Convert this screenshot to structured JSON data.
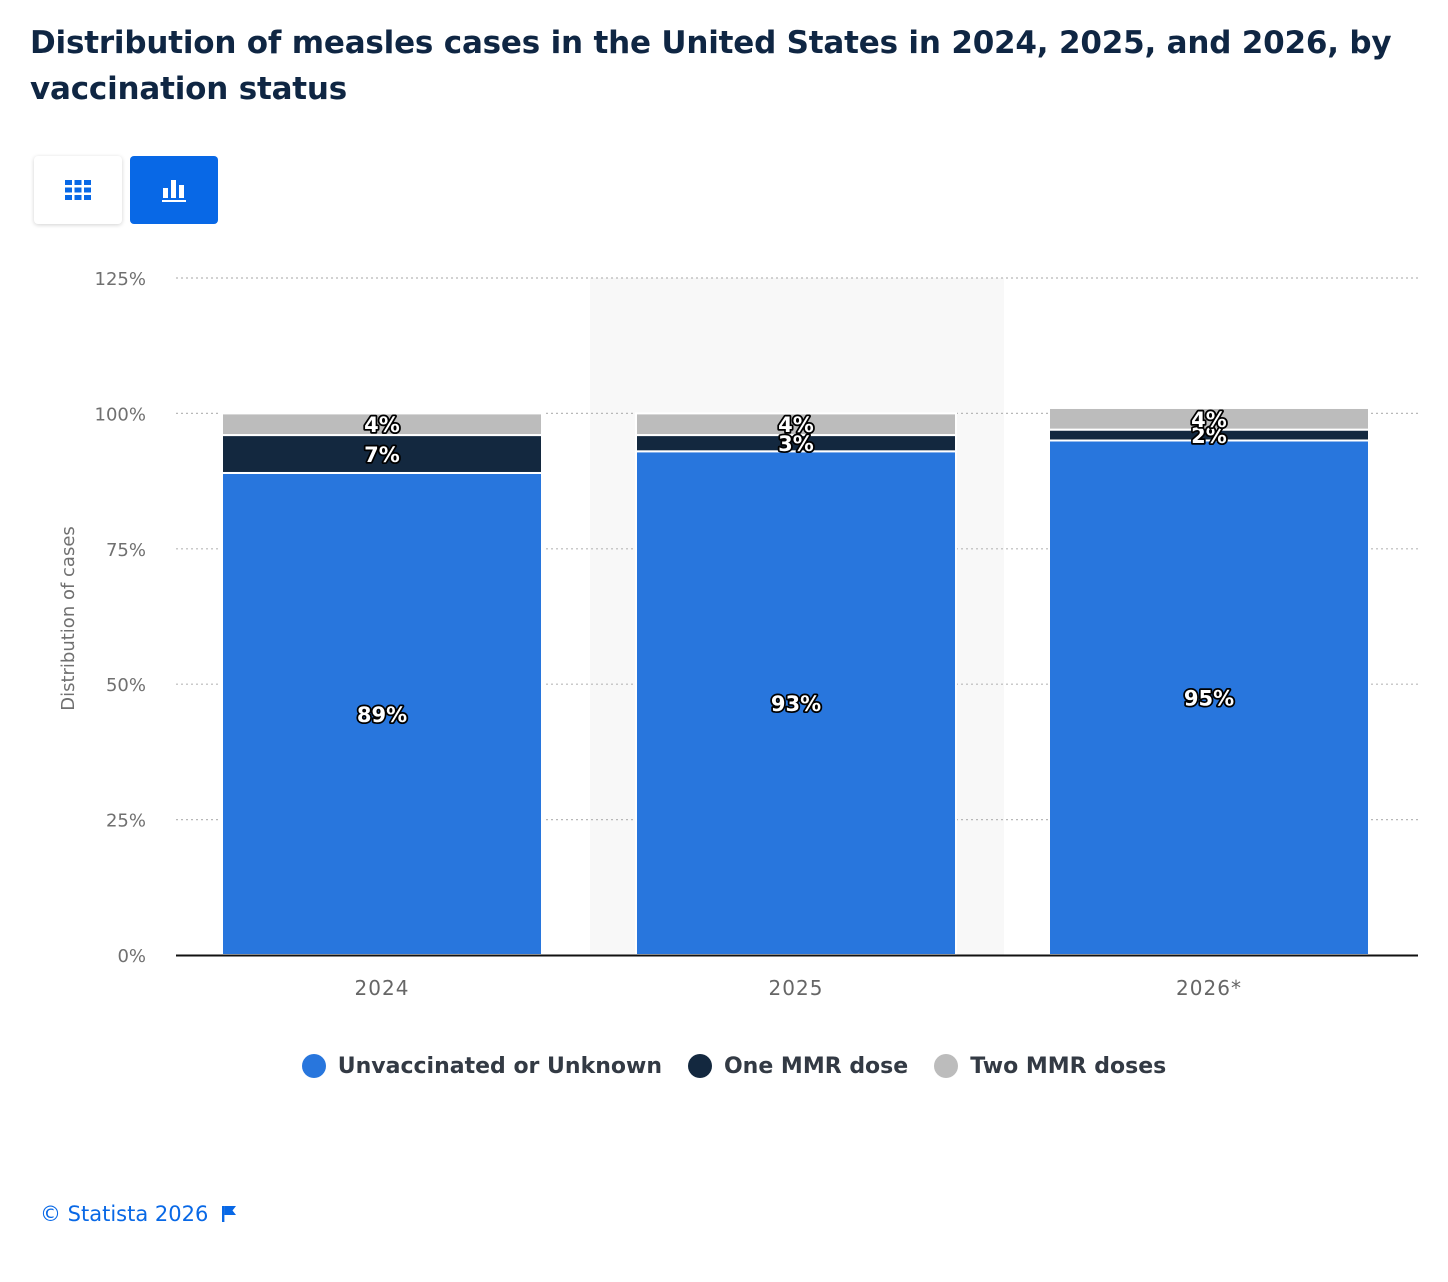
{
  "title": "Distribution of measles cases in the United States in 2024, 2025, and 2026, by vaccination status",
  "view_toggle": {
    "table_icon": "table-grid-icon",
    "chart_icon": "bar-chart-icon",
    "active": "chart"
  },
  "colors": {
    "accent": "#0868e6",
    "unvaccinated": "#2876dd",
    "one_dose": "#13283f",
    "two_doses": "#bcbcbc",
    "highlight_band": "#f8f8f8"
  },
  "chart_data": {
    "type": "bar",
    "stacked": true,
    "categories": [
      "2024",
      "2025",
      "2026*"
    ],
    "series": [
      {
        "name": "Unvaccinated or Unknown",
        "values": [
          89,
          93,
          95
        ],
        "labels": [
          "89%",
          "93%",
          "95%"
        ]
      },
      {
        "name": "One MMR dose",
        "values": [
          7,
          3,
          2
        ],
        "labels": [
          "7%",
          "3%",
          "2%"
        ]
      },
      {
        "name": "Two MMR doses",
        "values": [
          4,
          4,
          4
        ],
        "labels": [
          "4%",
          "4%",
          "4%"
        ]
      }
    ],
    "ylabel": "Distribution of cases",
    "xlabel": "",
    "ylim": [
      0,
      125
    ],
    "yticks": [
      0,
      25,
      50,
      75,
      100,
      125
    ],
    "ytick_labels": [
      "0%",
      "25%",
      "50%",
      "75%",
      "100%",
      "125%"
    ],
    "grid": true,
    "highlighted_category": "2025",
    "legend_position": "bottom"
  },
  "footer": {
    "credit": "© Statista 2026",
    "flag_icon": "flag-icon"
  }
}
